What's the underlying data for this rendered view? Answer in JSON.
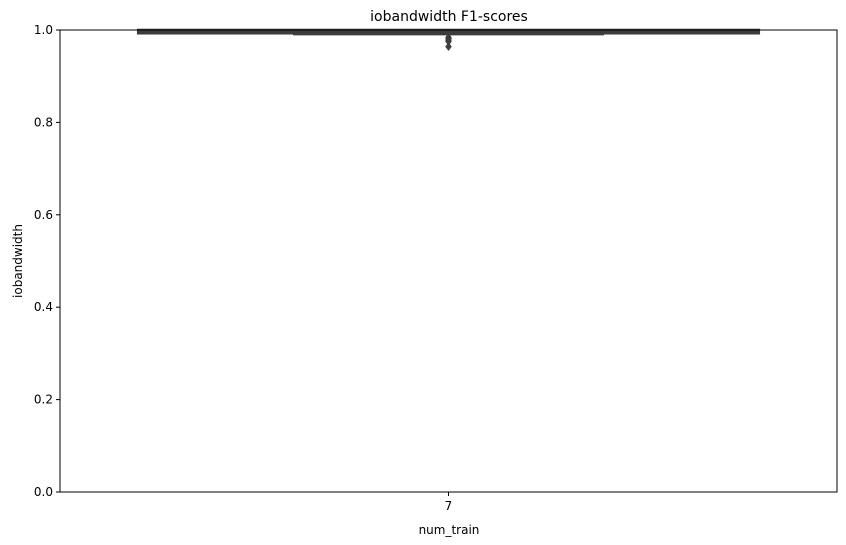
{
  "chart_data": {
    "type": "box",
    "title": "iobandwidth F1-scores",
    "xlabel": "num_train",
    "ylabel": "iobandwidth",
    "categories": [
      "7"
    ],
    "ylim": [
      0.0,
      1.0
    ],
    "yticks": [
      "0.0",
      "0.2",
      "0.4",
      "0.6",
      "0.8",
      "1.0"
    ],
    "grid": false,
    "boxes": [
      {
        "category": "7",
        "whisker_low": 0.99,
        "q1": 0.994,
        "median": 0.997,
        "q3": 0.999,
        "whisker_high": 1.0,
        "outliers": [
          0.984,
          0.981,
          0.978,
          0.975,
          0.964
        ]
      }
    ],
    "colors": {
      "box": "#3d3d3d",
      "axes": "#000000"
    }
  }
}
